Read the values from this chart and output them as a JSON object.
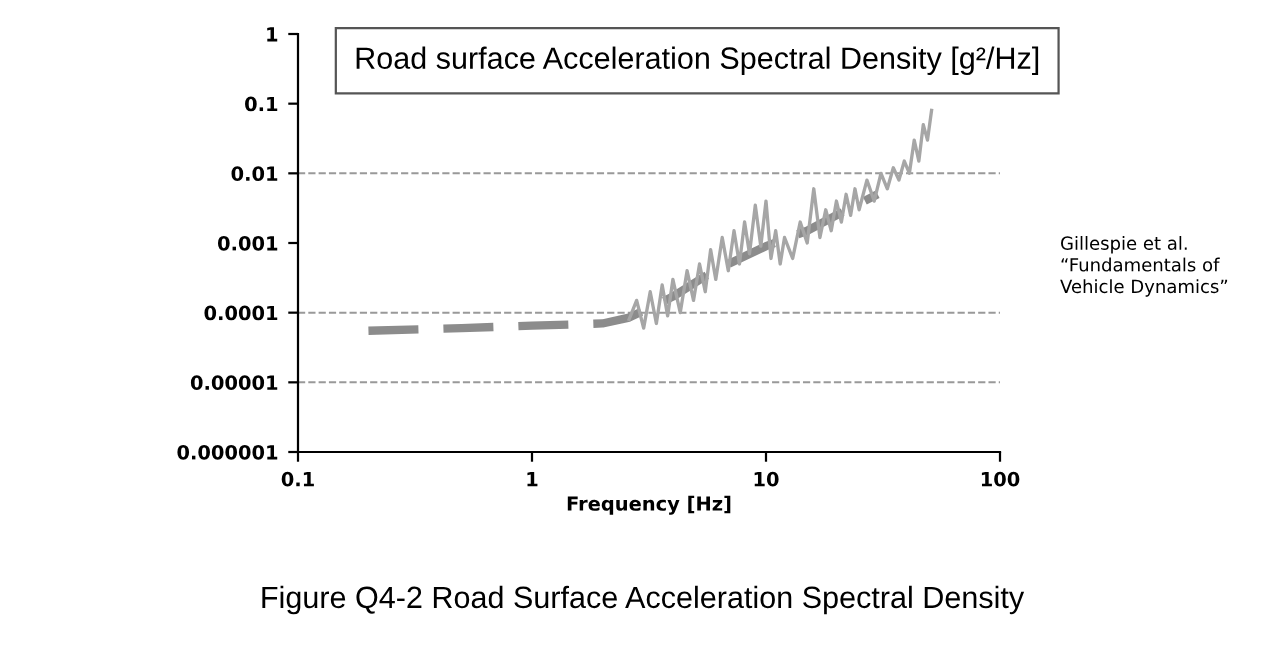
{
  "chart_data": {
    "type": "line",
    "title": "Road surface Acceleration Spectral Density [g²/Hz]",
    "xlabel": "Frequency [Hz]",
    "log": "xy",
    "xlim": [
      0.1,
      100
    ],
    "xticks": [
      0.1,
      1,
      10,
      100
    ],
    "ylim": [
      1e-06,
      1
    ],
    "yticks": [
      {
        "value": 1e-06,
        "label": "0.000001"
      },
      {
        "value": 1e-05,
        "label": "0.00001"
      },
      0.0001,
      0.001,
      0.01,
      0.1,
      1
    ],
    "series": [
      {
        "color": "#8c8c8c",
        "line_style": "dashed",
        "x": [
          0.2,
          0.5,
          1,
          2,
          2.6,
          4,
          6,
          10,
          15,
          20,
          30
        ],
        "values": [
          5.5e-05,
          6e-05,
          6.5e-05,
          7e-05,
          8.5e-05,
          0.00017,
          0.0004,
          0.0009,
          0.0015,
          0.0025,
          0.005
        ]
      },
      {
        "color": "#a6a6a6",
        "line_style": "solid",
        "x": [
          2.6,
          2.8,
          3.0,
          3.2,
          3.4,
          3.6,
          3.8,
          4.0,
          4.3,
          4.6,
          4.9,
          5.2,
          5.5,
          5.8,
          6.1,
          6.5,
          6.9,
          7.3,
          7.7,
          8.1,
          8.5,
          9,
          9.5,
          10,
          10.5,
          11,
          11.5,
          12,
          13,
          14,
          15,
          16,
          17,
          18,
          19,
          20,
          21,
          22,
          23,
          24,
          25,
          27,
          29,
          31,
          33,
          35,
          37,
          39,
          41,
          43,
          45,
          47,
          49,
          51
        ],
        "values": [
          8e-05,
          0.00015,
          6e-05,
          0.0002,
          7e-05,
          0.00025,
          9e-05,
          0.0003,
          0.0001,
          0.0004,
          0.00015,
          0.0005,
          0.0002,
          0.0008,
          0.0003,
          0.0012,
          0.0004,
          0.0015,
          0.0005,
          0.002,
          0.0007,
          0.0035,
          0.0009,
          0.004,
          0.0006,
          0.0015,
          0.0005,
          0.0012,
          0.0006,
          0.002,
          0.001,
          0.006,
          0.0012,
          0.003,
          0.0015,
          0.004,
          0.002,
          0.005,
          0.0025,
          0.006,
          0.003,
          0.008,
          0.004,
          0.01,
          0.006,
          0.012,
          0.008,
          0.015,
          0.01,
          0.03,
          0.015,
          0.05,
          0.03,
          0.08
        ]
      }
    ],
    "ref_lines": [
      {
        "axis": "y",
        "value": 0.01,
        "color": "#999999",
        "line_style": "dashed"
      },
      {
        "axis": "y",
        "value": 0.0001,
        "color": "#999999",
        "line_style": "dashed"
      },
      {
        "axis": "y",
        "value": 1e-05,
        "color": "#999999",
        "line_style": "dashed"
      }
    ],
    "annotations": [
      "Gillespie et al.\n“Fundamentals of\nVehicle Dynamics”",
      "Figure Q4-2 Road Surface Acceleration Spectral Density"
    ]
  }
}
